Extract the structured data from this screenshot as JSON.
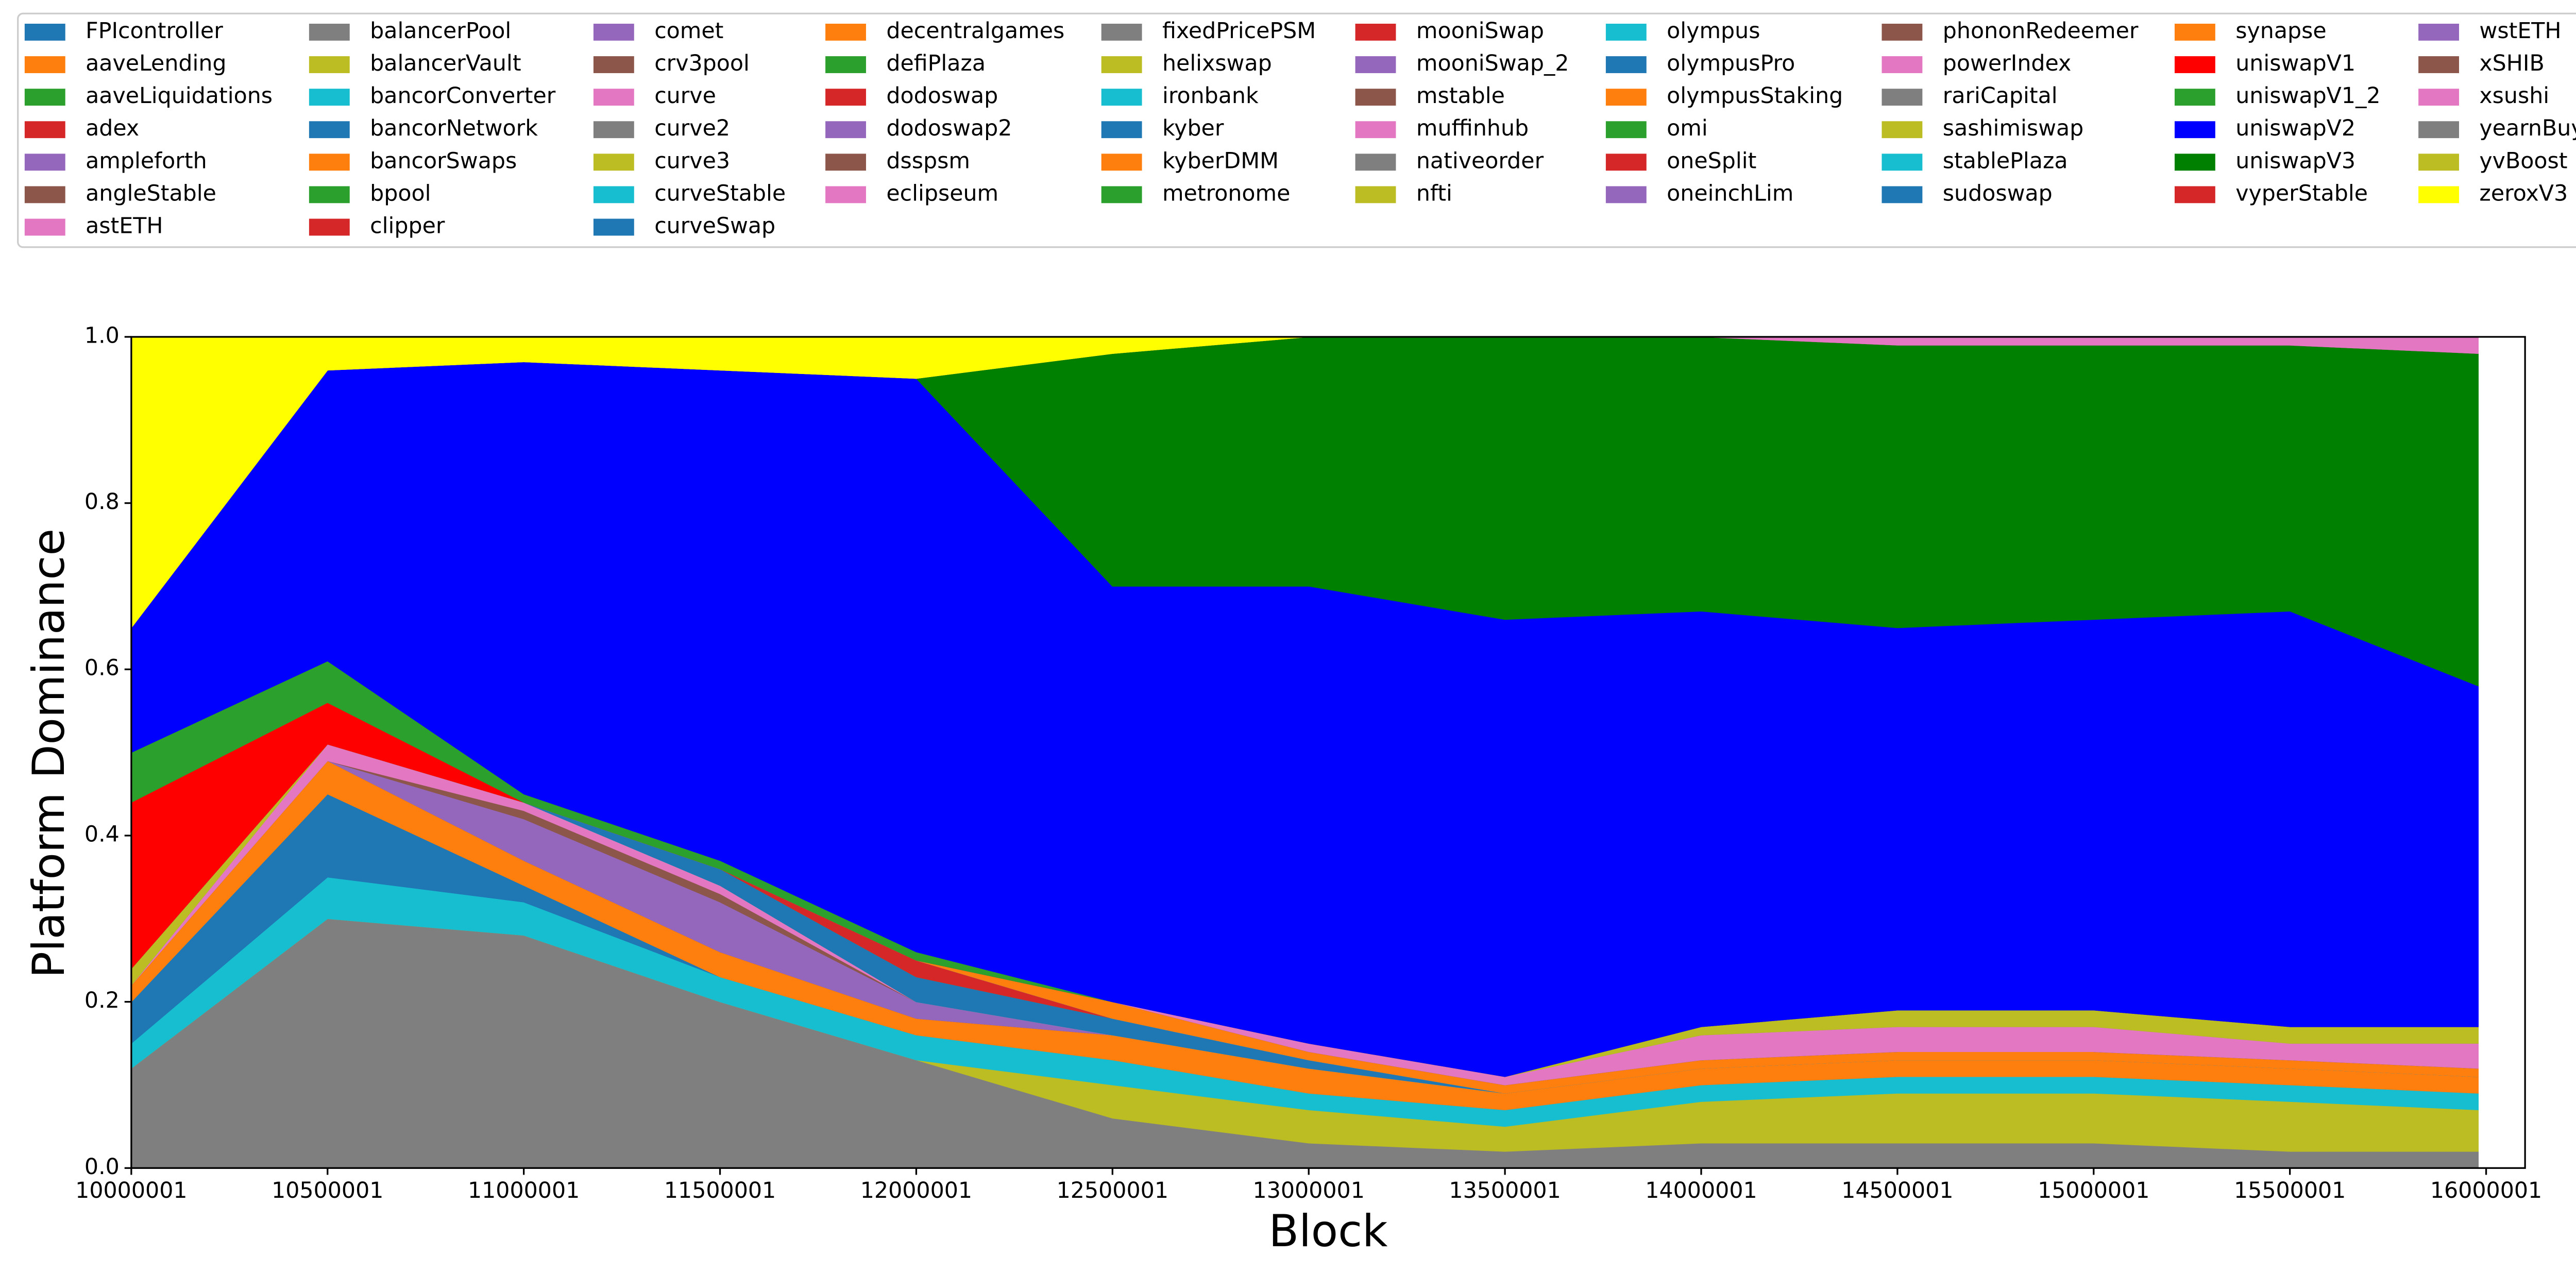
{
  "chart_data": {
    "type": "area",
    "stacked": true,
    "x_label": "Block",
    "y_label": "Platform Dominance",
    "x": [
      10000001,
      10500001,
      11000001,
      11500001,
      12000001,
      12500001,
      13000001,
      13500001,
      14000001,
      14500001,
      15000001,
      15500001,
      15980001
    ],
    "xlim": [
      10000001,
      16099210
    ],
    "xticks": [
      10000001,
      10500001,
      11000001,
      11500001,
      12000001,
      12500001,
      13000001,
      13500001,
      14000001,
      14500001,
      15000001,
      15500001,
      16000001
    ],
    "ylim": [
      0,
      1
    ],
    "yticks": [
      {
        "value": 0,
        "label": "0.0"
      },
      {
        "value": 0.2,
        "label": "0.2"
      },
      {
        "value": 0.4,
        "label": "0.4"
      },
      {
        "value": 0.6,
        "label": "0.6"
      },
      {
        "value": 0.8,
        "label": "0.8"
      },
      {
        "value": 1,
        "label": "1.0"
      }
    ],
    "series": [
      {
        "name": "FPIcontroller",
        "color": "#1f77b4",
        "values": [
          0,
          0,
          0,
          0,
          0,
          0,
          0,
          0,
          0,
          0,
          0,
          0,
          0
        ]
      },
      {
        "name": "aaveLending",
        "color": "#ff7f0e",
        "values": [
          0,
          0,
          0,
          0,
          0,
          0,
          0,
          0,
          0,
          0,
          0,
          0,
          0
        ]
      },
      {
        "name": "aaveLiquidations",
        "color": "#2ca02c",
        "values": [
          0,
          0,
          0,
          0,
          0,
          0,
          0,
          0,
          0,
          0,
          0,
          0,
          0
        ]
      },
      {
        "name": "adex",
        "color": "#d62728",
        "values": [
          0,
          0,
          0,
          0,
          0,
          0,
          0,
          0,
          0,
          0,
          0,
          0,
          0
        ]
      },
      {
        "name": "ampleforth",
        "color": "#9467bd",
        "values": [
          0,
          0,
          0,
          0,
          0,
          0,
          0,
          0,
          0,
          0,
          0,
          0,
          0
        ]
      },
      {
        "name": "angleStable",
        "color": "#8c564b",
        "values": [
          0,
          0,
          0,
          0,
          0,
          0,
          0,
          0,
          0,
          0,
          0,
          0,
          0
        ]
      },
      {
        "name": "astETH",
        "color": "#e377c2",
        "values": [
          0,
          0,
          0,
          0,
          0,
          0,
          0,
          0,
          0,
          0,
          0,
          0,
          0
        ]
      },
      {
        "name": "balancerPool",
        "color": "#7f7f7f",
        "values": [
          0.12,
          0.3,
          0.28,
          0.2,
          0.13,
          0.06,
          0.03,
          0.02,
          0.03,
          0.03,
          0.03,
          0.02,
          0.02
        ]
      },
      {
        "name": "balancerVault",
        "color": "#bcbd22",
        "values": [
          0,
          0,
          0,
          0,
          0,
          0.04,
          0.04,
          0.03,
          0.05,
          0.06,
          0.06,
          0.06,
          0.05
        ]
      },
      {
        "name": "bancorConverter",
        "color": "#17becf",
        "values": [
          0.03,
          0.05,
          0.04,
          0.03,
          0.03,
          0.03,
          0.02,
          0.02,
          0.02,
          0.02,
          0.02,
          0.02,
          0.02
        ]
      },
      {
        "name": "bancorNetwork",
        "color": "#1f77b4",
        "values": [
          0.05,
          0.1,
          0.02,
          0,
          0,
          0,
          0,
          0,
          0,
          0,
          0,
          0,
          0
        ]
      },
      {
        "name": "bancorSwaps",
        "color": "#ff7f0e",
        "values": [
          0.02,
          0.04,
          0.03,
          0.03,
          0.02,
          0.03,
          0.03,
          0.02,
          0.02,
          0.02,
          0.02,
          0.02,
          0.02
        ]
      },
      {
        "name": "bpool",
        "color": "#2ca02c",
        "values": [
          0,
          0,
          0,
          0,
          0,
          0,
          0,
          0,
          0,
          0,
          0,
          0,
          0
        ]
      },
      {
        "name": "clipper",
        "color": "#d62728",
        "values": [
          0,
          0,
          0,
          0,
          0,
          0,
          0,
          0,
          0,
          0,
          0,
          0,
          0
        ]
      },
      {
        "name": "comet",
        "color": "#9467bd",
        "values": [
          0,
          0,
          0.05,
          0.06,
          0.02,
          0,
          0,
          0,
          0,
          0,
          0,
          0,
          0
        ]
      },
      {
        "name": "crv3pool",
        "color": "#8c564b",
        "values": [
          0,
          0,
          0.01,
          0.01,
          0,
          0,
          0,
          0,
          0,
          0,
          0,
          0,
          0
        ]
      },
      {
        "name": "curve",
        "color": "#e377c2",
        "values": [
          0,
          0.02,
          0.01,
          0.01,
          0,
          0,
          0,
          0,
          0,
          0,
          0,
          0,
          0
        ]
      },
      {
        "name": "curve2",
        "color": "#7f7f7f",
        "values": [
          0,
          0,
          0,
          0,
          0,
          0,
          0,
          0,
          0,
          0,
          0,
          0,
          0
        ]
      },
      {
        "name": "curve3",
        "color": "#bcbd22",
        "values": [
          0.02,
          0,
          0,
          0,
          0,
          0,
          0,
          0,
          0,
          0,
          0,
          0,
          0
        ]
      },
      {
        "name": "curveStable",
        "color": "#17becf",
        "values": [
          0,
          0,
          0,
          0,
          0,
          0,
          0,
          0,
          0,
          0,
          0,
          0,
          0
        ]
      },
      {
        "name": "curveSwap",
        "color": "#1f77b4",
        "values": [
          0,
          0,
          0,
          0.02,
          0.03,
          0.02,
          0.01,
          0,
          0,
          0,
          0,
          0,
          0
        ]
      },
      {
        "name": "decentralgames",
        "color": "#ff7f0e",
        "values": [
          0,
          0,
          0,
          0,
          0,
          0,
          0,
          0,
          0,
          0,
          0,
          0,
          0
        ]
      },
      {
        "name": "defiPlaza",
        "color": "#2ca02c",
        "values": [
          0,
          0,
          0,
          0,
          0,
          0,
          0,
          0,
          0,
          0,
          0,
          0,
          0
        ]
      },
      {
        "name": "dodoswap",
        "color": "#d62728",
        "values": [
          0,
          0,
          0,
          0,
          0.02,
          0,
          0,
          0,
          0,
          0,
          0,
          0,
          0
        ]
      },
      {
        "name": "dodoswap2",
        "color": "#9467bd",
        "values": [
          0,
          0,
          0,
          0,
          0,
          0,
          0,
          0,
          0,
          0,
          0,
          0,
          0
        ]
      },
      {
        "name": "dsspsm",
        "color": "#8c564b",
        "values": [
          0,
          0,
          0,
          0,
          0,
          0,
          0,
          0,
          0,
          0,
          0,
          0,
          0
        ]
      },
      {
        "name": "eclipseum",
        "color": "#e377c2",
        "values": [
          0,
          0,
          0,
          0,
          0,
          0,
          0,
          0,
          0,
          0,
          0,
          0,
          0
        ]
      },
      {
        "name": "fixedPricePSM",
        "color": "#7f7f7f",
        "values": [
          0,
          0,
          0,
          0,
          0,
          0,
          0,
          0,
          0,
          0,
          0,
          0,
          0
        ]
      },
      {
        "name": "helixswap",
        "color": "#bcbd22",
        "values": [
          0,
          0,
          0,
          0,
          0,
          0,
          0,
          0,
          0,
          0,
          0,
          0,
          0
        ]
      },
      {
        "name": "ironbank",
        "color": "#17becf",
        "values": [
          0,
          0,
          0,
          0,
          0,
          0,
          0,
          0,
          0,
          0,
          0,
          0,
          0
        ]
      },
      {
        "name": "kyber",
        "color": "#1f77b4",
        "values": [
          0,
          0,
          0,
          0,
          0,
          0,
          0,
          0,
          0,
          0,
          0,
          0,
          0
        ]
      },
      {
        "name": "kyberDMM",
        "color": "#ff7f0e",
        "values": [
          0,
          0,
          0,
          0,
          0,
          0.02,
          0.01,
          0.01,
          0.01,
          0.01,
          0.01,
          0.01,
          0.01
        ]
      },
      {
        "name": "metronome",
        "color": "#2ca02c",
        "values": [
          0,
          0,
          0,
          0,
          0,
          0,
          0,
          0,
          0,
          0,
          0,
          0,
          0
        ]
      },
      {
        "name": "mooniSwap",
        "color": "#d62728",
        "values": [
          0,
          0,
          0,
          0,
          0,
          0,
          0,
          0,
          0,
          0,
          0,
          0,
          0
        ]
      },
      {
        "name": "mooniSwap_2",
        "color": "#9467bd",
        "values": [
          0,
          0,
          0,
          0,
          0,
          0,
          0,
          0,
          0,
          0,
          0,
          0,
          0
        ]
      },
      {
        "name": "mstable",
        "color": "#8c564b",
        "values": [
          0,
          0,
          0,
          0,
          0,
          0,
          0,
          0,
          0,
          0,
          0,
          0,
          0
        ]
      },
      {
        "name": "muffinhub",
        "color": "#e377c2",
        "values": [
          0,
          0,
          0,
          0,
          0,
          0,
          0,
          0,
          0,
          0,
          0,
          0,
          0
        ]
      },
      {
        "name": "nativeorder",
        "color": "#7f7f7f",
        "values": [
          0,
          0,
          0,
          0,
          0,
          0,
          0,
          0,
          0,
          0,
          0,
          0,
          0
        ]
      },
      {
        "name": "nfti",
        "color": "#bcbd22",
        "values": [
          0,
          0,
          0,
          0,
          0,
          0,
          0,
          0,
          0,
          0,
          0,
          0,
          0
        ]
      },
      {
        "name": "olympus",
        "color": "#17becf",
        "values": [
          0,
          0,
          0,
          0,
          0,
          0,
          0,
          0,
          0,
          0,
          0,
          0,
          0
        ]
      },
      {
        "name": "olympusPro",
        "color": "#1f77b4",
        "values": [
          0,
          0,
          0,
          0,
          0,
          0,
          0,
          0,
          0,
          0,
          0,
          0,
          0
        ]
      },
      {
        "name": "olympusStaking",
        "color": "#ff7f0e",
        "values": [
          0,
          0,
          0,
          0,
          0,
          0,
          0,
          0,
          0,
          0,
          0,
          0,
          0
        ]
      },
      {
        "name": "omi",
        "color": "#2ca02c",
        "values": [
          0,
          0,
          0,
          0,
          0,
          0,
          0,
          0,
          0,
          0,
          0,
          0,
          0
        ]
      },
      {
        "name": "oneSplit",
        "color": "#d62728",
        "values": [
          0,
          0,
          0,
          0,
          0,
          0,
          0,
          0,
          0,
          0,
          0,
          0,
          0
        ]
      },
      {
        "name": "oneinchLim",
        "color": "#9467bd",
        "values": [
          0,
          0,
          0,
          0,
          0,
          0,
          0,
          0,
          0,
          0,
          0,
          0,
          0
        ]
      },
      {
        "name": "phononRedeemer",
        "color": "#8c564b",
        "values": [
          0,
          0,
          0,
          0,
          0,
          0,
          0,
          0,
          0,
          0,
          0,
          0,
          0
        ]
      },
      {
        "name": "powerIndex",
        "color": "#e377c2",
        "values": [
          0,
          0,
          0,
          0,
          0,
          0,
          0.01,
          0.01,
          0.03,
          0.03,
          0.03,
          0.02,
          0.03
        ]
      },
      {
        "name": "rariCapital",
        "color": "#7f7f7f",
        "values": [
          0,
          0,
          0,
          0,
          0,
          0,
          0,
          0,
          0,
          0,
          0,
          0,
          0
        ]
      },
      {
        "name": "sashimiswap",
        "color": "#bcbd22",
        "values": [
          0,
          0,
          0,
          0,
          0,
          0,
          0,
          0,
          0.01,
          0.02,
          0.02,
          0.02,
          0.02
        ]
      },
      {
        "name": "stablePlaza",
        "color": "#17becf",
        "values": [
          0,
          0,
          0,
          0,
          0,
          0,
          0,
          0,
          0,
          0,
          0,
          0,
          0
        ]
      },
      {
        "name": "sudoswap",
        "color": "#1f77b4",
        "values": [
          0,
          0,
          0,
          0,
          0,
          0,
          0,
          0,
          0,
          0,
          0,
          0,
          0
        ]
      },
      {
        "name": "synapse",
        "color": "#ff7f0e",
        "values": [
          0,
          0,
          0,
          0,
          0,
          0,
          0,
          0,
          0,
          0,
          0,
          0,
          0
        ]
      },
      {
        "name": "uniswapV1",
        "color": "#ff0000",
        "values": [
          0.2,
          0.05,
          0,
          0,
          0,
          0,
          0,
          0,
          0,
          0,
          0,
          0,
          0
        ]
      },
      {
        "name": "uniswapV1_2",
        "color": "#2ca02c",
        "values": [
          0.06,
          0.05,
          0.01,
          0.01,
          0.01,
          0,
          0,
          0,
          0,
          0,
          0,
          0,
          0
        ]
      },
      {
        "name": "uniswapV2",
        "color": "#0000ff",
        "values": [
          0.15,
          0.35,
          0.52,
          0.59,
          0.69,
          0.5,
          0.55,
          0.55,
          0.5,
          0.46,
          0.47,
          0.5,
          0.41
        ]
      },
      {
        "name": "uniswapV3",
        "color": "#008000",
        "values": [
          0,
          0,
          0,
          0,
          0,
          0.28,
          0.3,
          0.34,
          0.33,
          0.34,
          0.33,
          0.32,
          0.4
        ]
      },
      {
        "name": "vyperStable",
        "color": "#d62728",
        "values": [
          0,
          0,
          0,
          0,
          0,
          0,
          0,
          0,
          0,
          0,
          0,
          0,
          0
        ]
      },
      {
        "name": "wstETH",
        "color": "#9467bd",
        "values": [
          0,
          0,
          0,
          0,
          0,
          0,
          0,
          0,
          0,
          0,
          0,
          0,
          0
        ]
      },
      {
        "name": "xSHIB",
        "color": "#8c564b",
        "values": [
          0,
          0,
          0,
          0,
          0,
          0,
          0,
          0,
          0,
          0,
          0,
          0,
          0
        ]
      },
      {
        "name": "xsushi",
        "color": "#e377c2",
        "values": [
          0,
          0,
          0,
          0,
          0,
          0,
          0,
          0,
          0,
          0.01,
          0.01,
          0.01,
          0.02
        ]
      },
      {
        "name": "yearnBuyBack",
        "color": "#7f7f7f",
        "values": [
          0,
          0,
          0,
          0,
          0,
          0,
          0,
          0,
          0,
          0,
          0,
          0,
          0
        ]
      },
      {
        "name": "yvBoost",
        "color": "#bcbd22",
        "values": [
          0,
          0,
          0,
          0,
          0,
          0,
          0,
          0,
          0,
          0,
          0,
          0,
          0
        ]
      },
      {
        "name": "zeroxV3",
        "color": "#ffff00",
        "values": [
          0.35,
          0.04,
          0.03,
          0.04,
          0.05,
          0.02,
          0,
          0,
          0,
          0,
          0,
          0,
          0
        ]
      }
    ]
  }
}
